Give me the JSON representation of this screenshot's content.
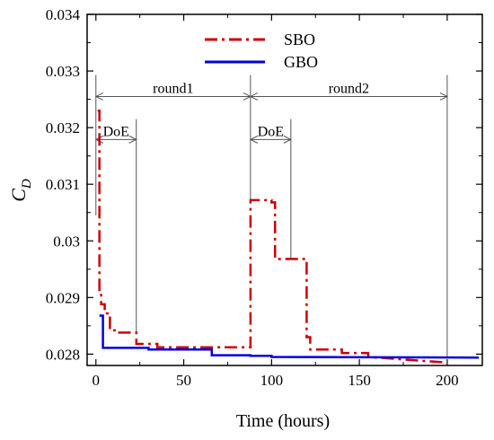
{
  "chart_data": {
    "type": "line",
    "xlabel": "Time (hours)",
    "ylabel_main": "C",
    "ylabel_sub": "D",
    "xlim": [
      -5,
      220
    ],
    "ylim": [
      0.0278,
      0.034
    ],
    "xticks": [
      0,
      50,
      100,
      150,
      200
    ],
    "yticks": [
      0.028,
      0.029,
      0.03,
      0.031,
      0.032,
      0.033,
      0.034
    ],
    "xtick_labels": [
      "0",
      "50",
      "100",
      "150",
      "200"
    ],
    "ytick_labels": [
      "0.028",
      "0.029",
      "0.03",
      "0.031",
      "0.032",
      "0.033",
      "0.034"
    ],
    "legend": {
      "position": "top-center",
      "entries": [
        "SBO",
        "GBO"
      ]
    },
    "series": [
      {
        "name": "SBO",
        "color": "#cc0000",
        "style": "dash-dot",
        "x": [
          1,
          2,
          2,
          3,
          3,
          5,
          5,
          8,
          8,
          12,
          12,
          23,
          23,
          35,
          35,
          87,
          87,
          88,
          88,
          100,
          100,
          102,
          102,
          115,
          115,
          120,
          120,
          122,
          122,
          140,
          140,
          155,
          155,
          200
        ],
        "y": [
          0.0323,
          0.0323,
          0.0291,
          0.0291,
          0.02888,
          0.02888,
          0.02872,
          0.02872,
          0.02842,
          0.02842,
          0.02838,
          0.02838,
          0.02818,
          0.02818,
          0.02812,
          0.02812,
          0.02812,
          0.02812,
          0.03072,
          0.03072,
          0.03068,
          0.03068,
          0.02968,
          0.02968,
          0.02968,
          0.02968,
          0.0283,
          0.0283,
          0.02808,
          0.02808,
          0.02802,
          0.02802,
          0.02795,
          0.02785
        ]
      },
      {
        "name": "GBO",
        "color": "#0000dd",
        "style": "solid",
        "x": [
          2,
          4,
          4,
          30,
          30,
          66,
          66,
          88,
          88,
          100,
          100,
          218
        ],
        "y": [
          0.02868,
          0.02868,
          0.02811,
          0.02811,
          0.02808,
          0.02808,
          0.02798,
          0.02798,
          0.02797,
          0.02797,
          0.02795,
          0.02794
        ]
      }
    ],
    "annotations": [
      {
        "text": "round1",
        "x_start": 0,
        "x_end": 88,
        "y": 0.03255
      },
      {
        "text": "round2",
        "x_start": 88,
        "x_end": 200,
        "y": 0.03255
      },
      {
        "text": "DoE",
        "x_start": 0,
        "x_end": 23,
        "y": 0.03179
      },
      {
        "text": "DoE",
        "x_start": 88,
        "x_end": 111,
        "y": 0.03179
      }
    ],
    "vertical_markers": [
      {
        "x": 0,
        "y_top": 0.03293,
        "y_bottom": 0.03045
      },
      {
        "x": 88,
        "y_top": 0.03293,
        "y_bottom": 0.03072
      },
      {
        "x": 200,
        "y_top": 0.03293,
        "y_bottom": 0.02795
      },
      {
        "x": 23,
        "y_top": 0.03215,
        "y_bottom": 0.02838
      },
      {
        "x": 111,
        "y_top": 0.03215,
        "y_bottom": 0.02968
      }
    ],
    "grid": false
  }
}
